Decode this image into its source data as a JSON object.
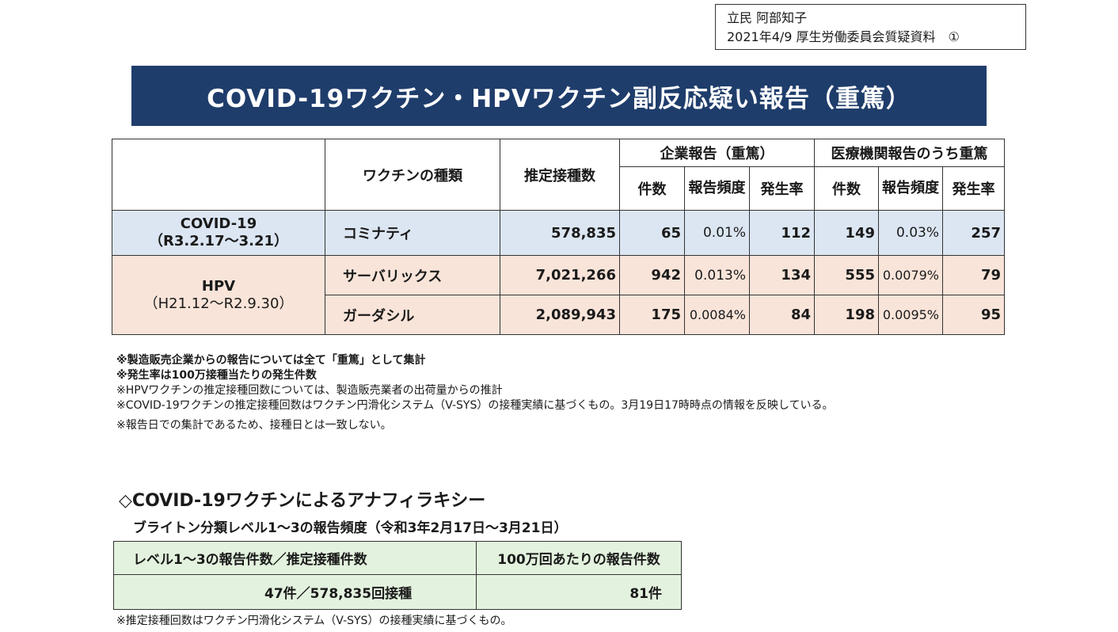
{
  "author": {
    "line1": "立民 阿部知子",
    "line2": "2021年4/9 厚生労働委員会質疑資料　①"
  },
  "title": "COVID-19ワクチン・HPVワクチン副反応疑い報告（重篤）",
  "table": {
    "headers": {
      "vaccine_type": "ワクチンの種類",
      "estimated_doses": "推定接種数",
      "company_group": "企業報告（重篤）",
      "medical_group": "医療機関報告のうち重篤",
      "count": "件数",
      "report_freq": "報告頻度",
      "incidence": "発生率"
    },
    "covid": {
      "name": "COVID-19",
      "period": "（R3.2.17〜3.21）",
      "vaccine": "コミナティ",
      "doses": "578,835",
      "company_count": "65",
      "company_freq": "0.01%",
      "company_rate": "112",
      "medical_count": "149",
      "medical_freq": "0.03%",
      "medical_rate": "257"
    },
    "hpv": {
      "name": "HPV",
      "period": "（H21.12〜R2.9.30）",
      "rows": [
        {
          "vaccine": "サーバリックス",
          "doses": "7,021,266",
          "company_count": "942",
          "company_freq": "0.013%",
          "company_rate": "134",
          "medical_count": "555",
          "medical_freq": "0.0079%",
          "medical_rate": "79"
        },
        {
          "vaccine": "ガーダシル",
          "doses": "2,089,943",
          "company_count": "175",
          "company_freq": "0.0084%",
          "company_rate": "84",
          "medical_count": "198",
          "medical_freq": "0.0095%",
          "medical_rate": "95"
        }
      ]
    }
  },
  "notes": [
    "※製造販売企業からの報告については全て「重篤」として集計",
    "※発生率は100万接種当たりの発生件数",
    "※HPVワクチンの推定接種回数については、製造販売業者の出荷量からの推計",
    "※COVID-19ワクチンの推定接種回数はワクチン円滑化システム（V-SYS）の接種実績に基づくもの。3月19日17時時点の情報を反映している。",
    "※報告日での集計であるため、接種日とは一致しない。"
  ],
  "anaphylaxis": {
    "title": "◇COVID-19ワクチンによるアナフィラキシー",
    "subtitle": "ブライトン分類レベル1〜3の報告頻度（令和3年2月17日〜3月21日）",
    "col1_header": "レベル1〜3の報告件数／推定接種件数",
    "col2_header": "100万回あたりの報告件数",
    "col1_value": "47件／578,835回接種",
    "col2_value": "81件",
    "footnote": "※推定接種回数はワクチン円滑化システム（V-SYS）の接種実績に基づくもの。"
  }
}
